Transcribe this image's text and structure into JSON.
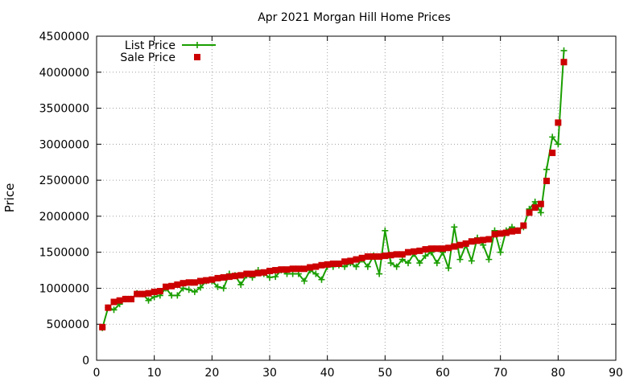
{
  "chart_data": {
    "type": "line",
    "title": "Apr 2021 Morgan Hill Home Prices",
    "xlabel": "",
    "ylabel": "Price",
    "xlim": [
      0,
      90
    ],
    "ylim": [
      0,
      4500000
    ],
    "xticks": [
      0,
      10,
      20,
      30,
      40,
      50,
      60,
      70,
      80,
      90
    ],
    "yticks": [
      0,
      500000,
      1000000,
      1500000,
      2000000,
      2500000,
      3000000,
      3500000,
      4000000,
      4500000
    ],
    "grid": true,
    "legend_position": "top-left",
    "x": [
      1,
      2,
      3,
      4,
      5,
      6,
      7,
      8,
      9,
      10,
      11,
      12,
      13,
      14,
      15,
      16,
      17,
      18,
      19,
      20,
      21,
      22,
      23,
      24,
      25,
      26,
      27,
      28,
      29,
      30,
      31,
      32,
      33,
      34,
      35,
      36,
      37,
      38,
      39,
      40,
      41,
      42,
      43,
      44,
      45,
      46,
      47,
      48,
      49,
      50,
      51,
      52,
      53,
      54,
      55,
      56,
      57,
      58,
      59,
      60,
      61,
      62,
      63,
      64,
      65,
      66,
      67,
      68,
      69,
      70,
      71,
      72,
      73,
      74,
      75,
      76,
      77,
      78,
      79,
      80,
      81
    ],
    "series": [
      {
        "name": "List Price",
        "color": "#1a9e00",
        "marker": "plus",
        "values": [
          450000,
          730000,
          700000,
          780000,
          850000,
          850000,
          930000,
          920000,
          830000,
          880000,
          900000,
          1000000,
          900000,
          900000,
          1000000,
          980000,
          950000,
          1010000,
          1100000,
          1100000,
          1020000,
          1000000,
          1200000,
          1180000,
          1050000,
          1180000,
          1150000,
          1250000,
          1200000,
          1150000,
          1160000,
          1250000,
          1200000,
          1200000,
          1200000,
          1100000,
          1250000,
          1200000,
          1120000,
          1300000,
          1300000,
          1320000,
          1300000,
          1350000,
          1300000,
          1400000,
          1300000,
          1450000,
          1200000,
          1800000,
          1350000,
          1300000,
          1400000,
          1350000,
          1480000,
          1350000,
          1450000,
          1500000,
          1350000,
          1500000,
          1280000,
          1850000,
          1400000,
          1600000,
          1380000,
          1700000,
          1600000,
          1400000,
          1800000,
          1500000,
          1800000,
          1850000,
          1800000,
          1850000,
          2100000,
          2200000,
          2050000,
          2650000,
          3100000,
          3000000,
          4300000
        ]
      },
      {
        "name": "Sale Price",
        "color": "#cc0000",
        "marker": "square",
        "values": [
          460000,
          730000,
          810000,
          830000,
          850000,
          850000,
          920000,
          920000,
          930000,
          950000,
          960000,
          1020000,
          1030000,
          1050000,
          1070000,
          1080000,
          1080000,
          1100000,
          1110000,
          1120000,
          1140000,
          1150000,
          1160000,
          1170000,
          1180000,
          1200000,
          1200000,
          1210000,
          1220000,
          1240000,
          1250000,
          1260000,
          1260000,
          1270000,
          1270000,
          1270000,
          1290000,
          1300000,
          1320000,
          1330000,
          1340000,
          1340000,
          1370000,
          1380000,
          1400000,
          1420000,
          1440000,
          1440000,
          1440000,
          1450000,
          1460000,
          1470000,
          1470000,
          1500000,
          1510000,
          1520000,
          1540000,
          1550000,
          1550000,
          1550000,
          1560000,
          1580000,
          1600000,
          1620000,
          1650000,
          1660000,
          1670000,
          1680000,
          1750000,
          1760000,
          1770000,
          1790000,
          1800000,
          1870000,
          2050000,
          2120000,
          2170000,
          2490000,
          2880000,
          3300000,
          4140000
        ]
      }
    ]
  }
}
